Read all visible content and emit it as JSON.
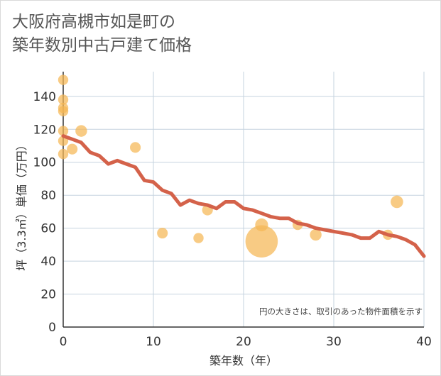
{
  "chart_data": {
    "type": "scatter",
    "title": [
      "大阪府高槻市如是町の",
      "築年数別中古戸建て価格"
    ],
    "xlabel": "築年数（年）",
    "ylabel": "坪（3.3㎡）単価（万円）",
    "xlim": [
      0,
      40
    ],
    "ylim": [
      0,
      155
    ],
    "xticks": [
      0,
      10,
      20,
      30,
      40
    ],
    "yticks": [
      0,
      20,
      40,
      60,
      80,
      100,
      120,
      140
    ],
    "grid": true,
    "note": "円の大きさは、取引のあった物件面積を示す",
    "colors": {
      "scatter": "#f5b754",
      "line": "#d4624a",
      "grid": "#c5d3df"
    },
    "series": [
      {
        "kind": "scatter",
        "points": [
          {
            "x": 0,
            "y": 150,
            "size": 1
          },
          {
            "x": 0,
            "y": 138,
            "size": 1
          },
          {
            "x": 0,
            "y": 133,
            "size": 1
          },
          {
            "x": 0,
            "y": 131,
            "size": 1
          },
          {
            "x": 0,
            "y": 119,
            "size": 1
          },
          {
            "x": 0,
            "y": 113,
            "size": 1
          },
          {
            "x": 0,
            "y": 105,
            "size": 1
          },
          {
            "x": 1,
            "y": 108,
            "size": 1.1
          },
          {
            "x": 2,
            "y": 119,
            "size": 1.3
          },
          {
            "x": 8,
            "y": 109,
            "size": 1.1
          },
          {
            "x": 11,
            "y": 57,
            "size": 1.1
          },
          {
            "x": 15,
            "y": 54,
            "size": 1
          },
          {
            "x": 16,
            "y": 71,
            "size": 1.1
          },
          {
            "x": 22,
            "y": 52,
            "size": 10
          },
          {
            "x": 22,
            "y": 62,
            "size": 1.6
          },
          {
            "x": 26,
            "y": 62,
            "size": 1
          },
          {
            "x": 28,
            "y": 56,
            "size": 1.3
          },
          {
            "x": 36,
            "y": 56,
            "size": 1
          },
          {
            "x": 37,
            "y": 76,
            "size": 1.5
          }
        ]
      },
      {
        "kind": "line",
        "x": [
          0,
          1,
          2,
          3,
          4,
          5,
          6,
          7,
          8,
          9,
          10,
          11,
          12,
          13,
          14,
          15,
          16,
          17,
          18,
          19,
          20,
          21,
          22,
          23,
          24,
          25,
          26,
          27,
          28,
          29,
          30,
          31,
          32,
          33,
          34,
          35,
          36,
          37,
          38,
          39,
          40
        ],
        "y": [
          116,
          114,
          112,
          106,
          104,
          99,
          101,
          99,
          97,
          89,
          88,
          83,
          81,
          74,
          77,
          75,
          74,
          72,
          76,
          76,
          72,
          71,
          69,
          67,
          66,
          66,
          63,
          62,
          60,
          59,
          58,
          57,
          56,
          54,
          54,
          58,
          56,
          55,
          53,
          50,
          43
        ]
      }
    ]
  }
}
